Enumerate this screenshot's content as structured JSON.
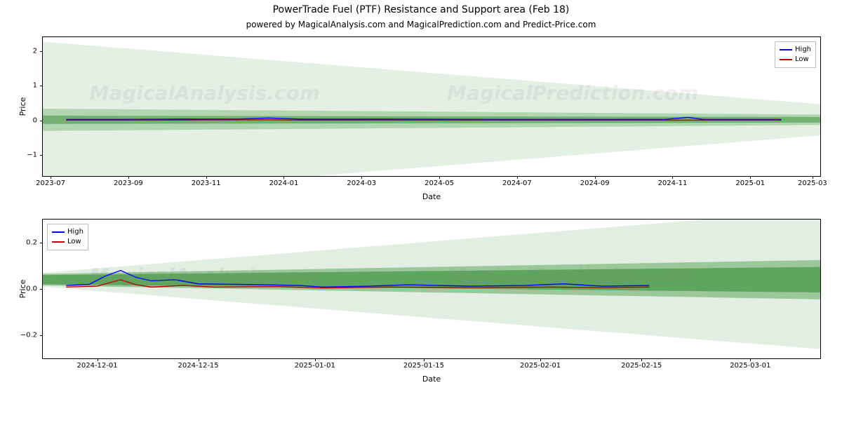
{
  "title": "PowerTrade Fuel (PTF) Resistance and Support area (Feb 18)",
  "subtitle": "powered by MagicalAnalysis.com and MagicalPrediction.com and Predict-Price.com",
  "watermarks": [
    "MagicalAnalysis.com",
    "MagicalPrediction.com"
  ],
  "legend": {
    "items": [
      {
        "label": "High",
        "color": "#0000ff"
      },
      {
        "label": "Low",
        "color": "#c00000"
      }
    ]
  },
  "panel1": {
    "type": "line_with_fan",
    "ylabel": "Price",
    "xlabel": "Date",
    "background_color": "#ffffff",
    "border_color": "#000000",
    "x_range": [
      0,
      100
    ],
    "x_ticks": [
      {
        "pos": 1,
        "label": "2023-07"
      },
      {
        "pos": 11,
        "label": "2023-09"
      },
      {
        "pos": 21,
        "label": "2023-11"
      },
      {
        "pos": 31,
        "label": "2024-01"
      },
      {
        "pos": 41,
        "label": "2024-03"
      },
      {
        "pos": 51,
        "label": "2024-05"
      },
      {
        "pos": 61,
        "label": "2024-07"
      },
      {
        "pos": 71,
        "label": "2024-09"
      },
      {
        "pos": 81,
        "label": "2024-11"
      },
      {
        "pos": 91,
        "label": "2025-01"
      },
      {
        "pos": 99,
        "label": "2025-03"
      }
    ],
    "y_range": [
      -1.6,
      2.4
    ],
    "y_ticks": [
      {
        "val": -1,
        "label": "−1"
      },
      {
        "val": 0,
        "label": "0"
      },
      {
        "val": 1,
        "label": "1"
      },
      {
        "val": 2,
        "label": "2"
      }
    ],
    "fan_apex_x": 82,
    "fan_apex_y": 0.02,
    "fan_layers": [
      {
        "half_start": 2.25,
        "half_end": 0.45,
        "color": "#d9ead9",
        "opacity": 0.7
      },
      {
        "half_start": 0.32,
        "half_end": 0.15,
        "color": "#88c088",
        "opacity": 0.55
      },
      {
        "half_start": 0.12,
        "half_end": 0.08,
        "color": "#4a9a4a",
        "opacity": 0.6
      }
    ],
    "line_high": {
      "color": "#0000ff",
      "width": 1.4,
      "points": [
        {
          "x": 3,
          "y": 0.03
        },
        {
          "x": 10,
          "y": 0.03
        },
        {
          "x": 18,
          "y": 0.04
        },
        {
          "x": 25,
          "y": 0.04
        },
        {
          "x": 29,
          "y": 0.07
        },
        {
          "x": 33,
          "y": 0.04
        },
        {
          "x": 45,
          "y": 0.04
        },
        {
          "x": 60,
          "y": 0.03
        },
        {
          "x": 70,
          "y": 0.03
        },
        {
          "x": 80,
          "y": 0.03
        },
        {
          "x": 83,
          "y": 0.09
        },
        {
          "x": 85,
          "y": 0.03
        },
        {
          "x": 95,
          "y": 0.03
        }
      ]
    },
    "line_low": {
      "color": "#c00000",
      "width": 1.4,
      "points": [
        {
          "x": 3,
          "y": 0.01
        },
        {
          "x": 15,
          "y": 0.01
        },
        {
          "x": 29,
          "y": 0.02
        },
        {
          "x": 33,
          "y": 0.01
        },
        {
          "x": 50,
          "y": 0.01
        },
        {
          "x": 70,
          "y": 0.01
        },
        {
          "x": 83,
          "y": 0.01
        },
        {
          "x": 95,
          "y": 0.01
        }
      ]
    },
    "legend_pos": "top-right"
  },
  "panel2": {
    "type": "line_with_fan",
    "ylabel": "Price",
    "xlabel": "Date",
    "background_color": "#ffffff",
    "border_color": "#000000",
    "x_range": [
      0,
      100
    ],
    "x_ticks": [
      {
        "pos": 7,
        "label": "2024-12-01"
      },
      {
        "pos": 20,
        "label": "2024-12-15"
      },
      {
        "pos": 35,
        "label": "2025-01-01"
      },
      {
        "pos": 49,
        "label": "2025-01-15"
      },
      {
        "pos": 64,
        "label": "2025-02-01"
      },
      {
        "pos": 77,
        "label": "2025-02-15"
      },
      {
        "pos": 91,
        "label": "2025-03-01"
      }
    ],
    "y_range": [
      -0.3,
      0.3
    ],
    "y_ticks": [
      {
        "val": -0.2,
        "label": "−0.2"
      },
      {
        "val": 0.0,
        "label": "0.0"
      },
      {
        "val": 0.2,
        "label": "0.2"
      }
    ],
    "fan_apex_x": 3,
    "fan_apex_y": 0.04,
    "fan_layers": [
      {
        "half_start": 0.03,
        "half_end": 0.3,
        "color": "#d9ead9",
        "opacity": 0.8
      },
      {
        "half_start": 0.025,
        "half_end": 0.085,
        "color": "#7db87d",
        "opacity": 0.7
      },
      {
        "half_start": 0.02,
        "half_end": 0.055,
        "color": "#4a9a4a",
        "opacity": 0.75
      }
    ],
    "line_high": {
      "color": "#0000ff",
      "width": 1.4,
      "points": [
        {
          "x": 3,
          "y": 0.015
        },
        {
          "x": 6,
          "y": 0.02
        },
        {
          "x": 8,
          "y": 0.055
        },
        {
          "x": 10,
          "y": 0.08
        },
        {
          "x": 12,
          "y": 0.05
        },
        {
          "x": 14,
          "y": 0.035
        },
        {
          "x": 17,
          "y": 0.04
        },
        {
          "x": 20,
          "y": 0.022
        },
        {
          "x": 25,
          "y": 0.02
        },
        {
          "x": 33,
          "y": 0.015
        },
        {
          "x": 36,
          "y": 0.008
        },
        {
          "x": 42,
          "y": 0.012
        },
        {
          "x": 47,
          "y": 0.018
        },
        {
          "x": 55,
          "y": 0.012
        },
        {
          "x": 62,
          "y": 0.015
        },
        {
          "x": 67,
          "y": 0.022
        },
        {
          "x": 72,
          "y": 0.012
        },
        {
          "x": 78,
          "y": 0.015
        }
      ]
    },
    "line_low": {
      "color": "#c00000",
      "width": 1.4,
      "points": [
        {
          "x": 3,
          "y": 0.008
        },
        {
          "x": 7,
          "y": 0.012
        },
        {
          "x": 10,
          "y": 0.04
        },
        {
          "x": 12,
          "y": 0.018
        },
        {
          "x": 14,
          "y": 0.008
        },
        {
          "x": 18,
          "y": 0.015
        },
        {
          "x": 22,
          "y": 0.008
        },
        {
          "x": 30,
          "y": 0.01
        },
        {
          "x": 36,
          "y": 0.004
        },
        {
          "x": 45,
          "y": 0.008
        },
        {
          "x": 55,
          "y": 0.006
        },
        {
          "x": 65,
          "y": 0.008
        },
        {
          "x": 72,
          "y": 0.006
        },
        {
          "x": 78,
          "y": 0.008
        }
      ]
    },
    "legend_pos": "top-left"
  }
}
